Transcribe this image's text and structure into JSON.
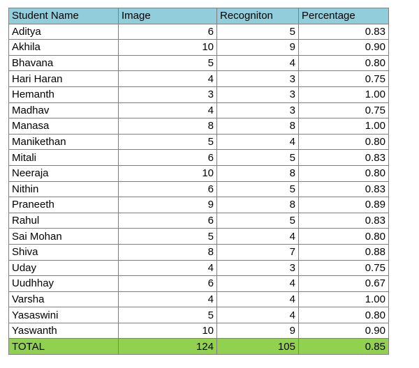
{
  "colors": {
    "header_bg": "#92cddc",
    "total_bg": "#92d050",
    "grid": "#7f7f7f"
  },
  "headers": [
    "Student Name",
    "Image",
    "Recogniton",
    "Percentage"
  ],
  "rows": [
    {
      "name": "Aditya",
      "image": "6",
      "recognition": "5",
      "percentage": "0.83"
    },
    {
      "name": "Akhila",
      "image": "10",
      "recognition": "9",
      "percentage": "0.90"
    },
    {
      "name": "Bhavana",
      "image": "5",
      "recognition": "4",
      "percentage": "0.80"
    },
    {
      "name": "Hari Haran",
      "image": "4",
      "recognition": "3",
      "percentage": "0.75"
    },
    {
      "name": "Hemanth",
      "image": "3",
      "recognition": "3",
      "percentage": "1.00"
    },
    {
      "name": "Madhav",
      "image": "4",
      "recognition": "3",
      "percentage": "0.75"
    },
    {
      "name": "Manasa",
      "image": "8",
      "recognition": "8",
      "percentage": "1.00"
    },
    {
      "name": "Manikethan",
      "image": "5",
      "recognition": "4",
      "percentage": "0.80"
    },
    {
      "name": "Mitali",
      "image": "6",
      "recognition": "5",
      "percentage": "0.83"
    },
    {
      "name": "Neeraja",
      "image": "10",
      "recognition": "8",
      "percentage": "0.80"
    },
    {
      "name": "Nithin",
      "image": "6",
      "recognition": "5",
      "percentage": "0.83"
    },
    {
      "name": "Praneeth",
      "image": "9",
      "recognition": "8",
      "percentage": "0.89"
    },
    {
      "name": "Rahul",
      "image": "6",
      "recognition": "5",
      "percentage": "0.83"
    },
    {
      "name": "Sai Mohan",
      "image": "5",
      "recognition": "4",
      "percentage": "0.80"
    },
    {
      "name": "Shiva",
      "image": "8",
      "recognition": "7",
      "percentage": "0.88"
    },
    {
      "name": "Uday",
      "image": "4",
      "recognition": "3",
      "percentage": "0.75"
    },
    {
      "name": "Uudhhay",
      "image": "6",
      "recognition": "4",
      "percentage": "0.67"
    },
    {
      "name": "Varsha",
      "image": "4",
      "recognition": "4",
      "percentage": "1.00"
    },
    {
      "name": "Yasaswini",
      "image": "5",
      "recognition": "4",
      "percentage": "0.80"
    },
    {
      "name": "Yaswanth",
      "image": "10",
      "recognition": "9",
      "percentage": "0.90"
    }
  ],
  "total": {
    "name": "TOTAL",
    "image": "124",
    "recognition": "105",
    "percentage": "0.85"
  }
}
